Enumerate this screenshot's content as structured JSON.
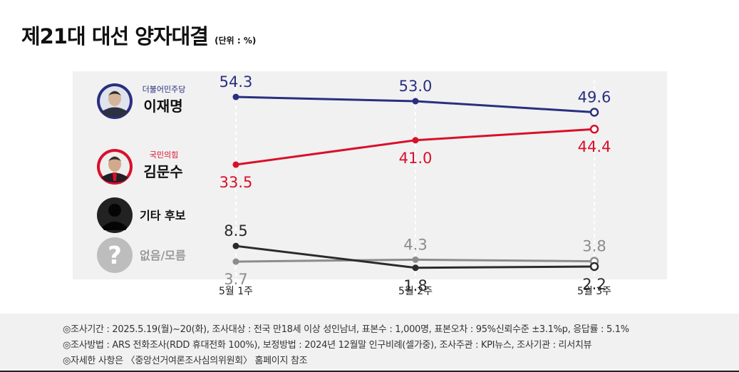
{
  "title": "제21대 대선 양자대결",
  "unit": "(단위 : %)",
  "chart_data": {
    "type": "line",
    "categories": [
      "5월 1주",
      "5월 2주",
      "5월 3주"
    ],
    "ylim": [
      0,
      60
    ],
    "series": [
      {
        "name": "이재명",
        "party": "더불어민주당",
        "color": "#2a2f80",
        "labels": [
          "54.3",
          "53.0",
          "49.6"
        ],
        "values": [
          54.3,
          53.0,
          49.6
        ],
        "label_pos": [
          "above",
          "above",
          "above"
        ],
        "avatar": "photo-dark-suit-blue"
      },
      {
        "name": "김문수",
        "party": "국민의힘",
        "color": "#d8102a",
        "labels": [
          "33.5",
          "41.0",
          "44.4"
        ],
        "values": [
          33.5,
          41.0,
          44.4
        ],
        "label_pos": [
          "below",
          "below",
          "below"
        ],
        "avatar": "photo-red-tie"
      },
      {
        "name": "기타 후보",
        "party": "",
        "color": "#2b2b2b",
        "labels": [
          "8.5",
          "1.8",
          "2.2"
        ],
        "values": [
          8.5,
          1.8,
          2.2
        ],
        "label_pos": [
          "above",
          "below",
          "below"
        ],
        "avatar": "silhouette-icon"
      },
      {
        "name": "없음/모름",
        "party": "",
        "color": "#8c8c8c",
        "labels": [
          "3.7",
          "4.3",
          "3.8"
        ],
        "values": [
          3.7,
          4.3,
          3.8
        ],
        "label_pos": [
          "below",
          "above",
          "above"
        ],
        "avatar": "question-mark-icon"
      }
    ]
  },
  "notes": [
    "◎조사기간 : 2025.5.19(월)~20(화), 조사대상 : 전국 만18세 이상 성인남녀, 표본수 : 1,000명, 표본오차 : 95%신뢰수준 ±3.1%p, 응답률 : 5.1%",
    "◎조사방법 : ARS 전화조사(RDD 휴대전화 100%), 보정방법 : 2024년 12월말 인구비례(셀가중), 조사주관 : KPI뉴스, 조사기관 : 리서치뷰",
    "◎자세한 사항은 〈중앙선거여론조사심의위원회〉 홈페이지 참조"
  ]
}
